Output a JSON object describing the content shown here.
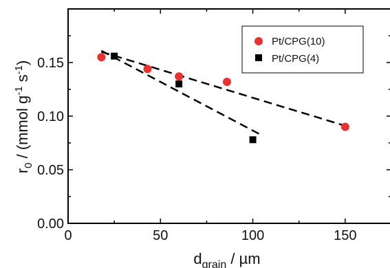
{
  "chart_data": {
    "type": "scatter",
    "xlabel": {
      "main": "d",
      "sub": "grain",
      "rest": " / µm"
    },
    "ylabel": {
      "r": "r",
      "sub": "0",
      "mid": " / (mmol g",
      "sup1": "-1",
      "mid2": " s",
      "sup2": "-1",
      "end": ")"
    },
    "xlim": [
      0,
      175
    ],
    "ylim": [
      0,
      0.2
    ],
    "x_ticks": [
      0,
      50,
      100,
      150
    ],
    "x_tick_labels": [
      "0",
      "50",
      "100",
      "150"
    ],
    "y_ticks": [
      0,
      0.05,
      0.1,
      0.15
    ],
    "y_tick_labels": [
      "0.00",
      "0.05",
      "0.10",
      "0.15"
    ],
    "grid": false,
    "legend_position": "top-right",
    "series": [
      {
        "name": "Pt/CPG(10)",
        "marker": "circle",
        "color": "#e8322f",
        "x": [
          18,
          43,
          60,
          86,
          150
        ],
        "y": [
          0.155,
          0.144,
          0.137,
          0.132,
          0.09
        ],
        "fit": {
          "x": [
            18,
            150
          ],
          "y": [
            0.16,
            0.091
          ],
          "style": "dashed"
        }
      },
      {
        "name": "Pt/CPG(4)",
        "marker": "square",
        "color": "#000000",
        "x": [
          25,
          60,
          100
        ],
        "y": [
          0.156,
          0.13,
          0.078
        ],
        "fit": {
          "x": [
            18,
            105
          ],
          "y": [
            0.161,
            0.082
          ],
          "style": "dashed"
        }
      }
    ]
  }
}
